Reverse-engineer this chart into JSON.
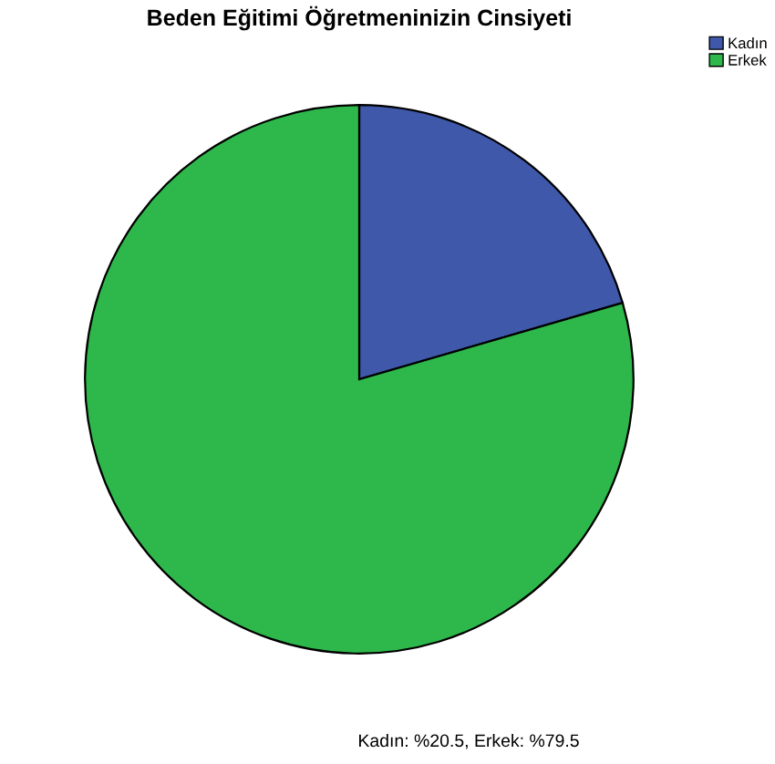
{
  "chart_data": {
    "type": "pie",
    "title": "Beden Eğitimi Öğretmeninizin Cinsiyeti",
    "categories": [
      "Kadın",
      "Erkek"
    ],
    "values": [
      20.5,
      79.5
    ],
    "colors": [
      "#3f58a9",
      "#2eb84b"
    ],
    "legend": "top right",
    "annotations": [
      "Kadın: %20.5, Erkek: %79.5"
    ]
  }
}
